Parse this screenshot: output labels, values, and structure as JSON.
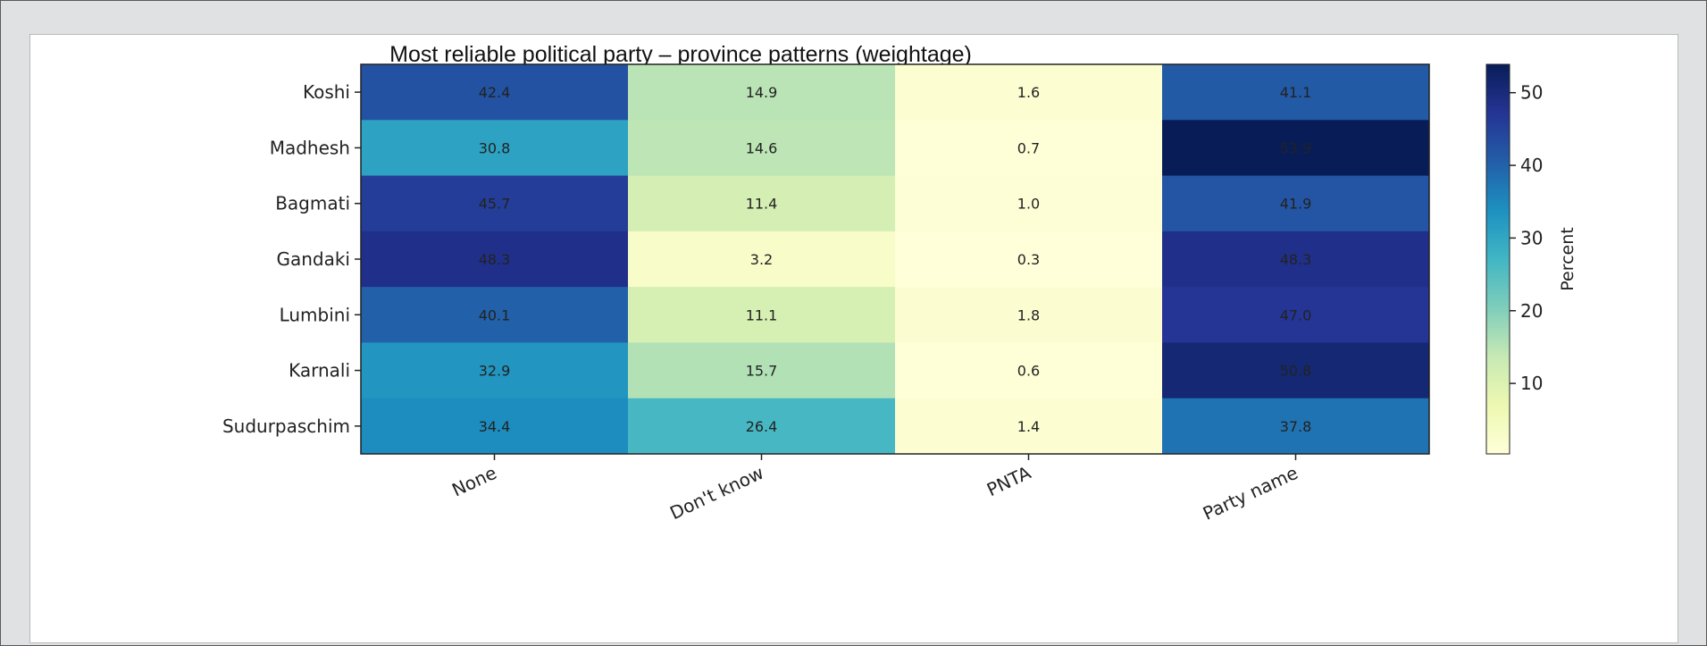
{
  "chart_data": {
    "type": "heatmap",
    "title": "Most reliable political party – province patterns (weightage)",
    "rows": [
      "Koshi",
      "Madhesh",
      "Bagmati",
      "Gandaki",
      "Lumbini",
      "Karnali",
      "Sudurpaschim"
    ],
    "columns": [
      "None",
      "Don't know",
      "PNTA",
      "Party name"
    ],
    "values": [
      [
        42.4,
        14.9,
        1.6,
        41.1
      ],
      [
        30.8,
        14.6,
        0.7,
        53.9
      ],
      [
        45.7,
        11.4,
        1.0,
        41.9
      ],
      [
        48.3,
        3.2,
        0.3,
        48.3
      ],
      [
        40.1,
        11.1,
        1.8,
        47.0
      ],
      [
        32.9,
        15.7,
        0.6,
        50.8
      ],
      [
        34.4,
        26.4,
        1.4,
        37.8
      ]
    ],
    "colorbar": {
      "label": "Percent",
      "range": [
        0.3,
        53.9
      ],
      "ticks": [
        10,
        20,
        30,
        40,
        50
      ],
      "colormap": "YlGnBu"
    },
    "xlabel": "",
    "ylabel": ""
  }
}
